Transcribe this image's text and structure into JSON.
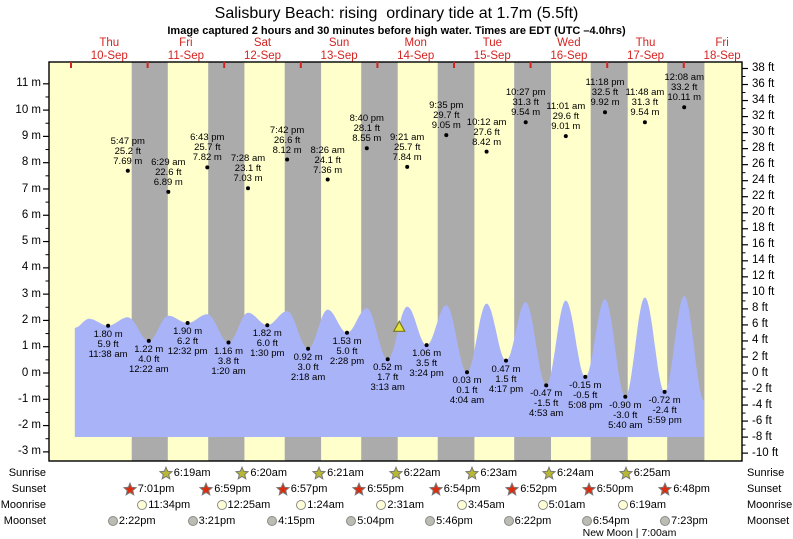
{
  "title": "Salisbury Beach: rising  ordinary tide at 1.7m (5.5ft)",
  "subtitle": "Image captured 2 hours and 30 minutes before high water. Times are EDT (UTC –4.0hrs)",
  "colors": {
    "day_band": "#ffffcc",
    "night_band": "#ababab",
    "tide_fill": "#a9b3f7",
    "day_label": "#d42421",
    "top_tick": "#d42421",
    "sunrise_star": "#b8b832",
    "sunset_star": "#dd2d0e",
    "moonrise_circle": "#ffffd6",
    "moonset_circle": "#bcbcb2",
    "marker_fill": "#e8e23c",
    "marker_stroke": "#7a7a20"
  },
  "chart_data": {
    "type": "area",
    "title": "Salisbury Beach: rising  ordinary tide at 1.7m (5.5ft)",
    "x_axis_days": [
      {
        "name": "Thu",
        "date": "10-Sep"
      },
      {
        "name": "Fri",
        "date": "11-Sep"
      },
      {
        "name": "Sat",
        "date": "12-Sep"
      },
      {
        "name": "Sun",
        "date": "13-Sep"
      },
      {
        "name": "Mon",
        "date": "14-Sep"
      },
      {
        "name": "Tue",
        "date": "15-Sep"
      },
      {
        "name": "Wed",
        "date": "16-Sep"
      },
      {
        "name": "Thu",
        "date": "17-Sep"
      },
      {
        "name": "Fri",
        "date": "18-Sep"
      }
    ],
    "y_axis_left": {
      "unit": "m",
      "max": 11,
      "min": -3,
      "step": 1,
      "ticks": [
        "11 m",
        "10 m",
        "9 m",
        "8 m",
        "7 m",
        "6 m",
        "5 m",
        "4 m",
        "3 m",
        "2 m",
        "1 m",
        "0 m",
        "-1 m",
        "-2 m",
        "-3 m"
      ]
    },
    "y_axis_right": {
      "unit": "ft",
      "max": 38,
      "min": -10,
      "step": 2,
      "ticks": [
        "38 ft",
        "36 ft",
        "34 ft",
        "32 ft",
        "30 ft",
        "28 ft",
        "26 ft",
        "24 ft",
        "22 ft",
        "20 ft",
        "18 ft",
        "16 ft",
        "14 ft",
        "12 ft",
        "10 ft",
        "8 ft",
        "6 ft",
        "4 ft",
        "2 ft",
        "0 ft",
        "-2 ft",
        "-4 ft",
        "-6 ft",
        "-8 ft",
        "-10 ft"
      ]
    },
    "high_tides": [
      {
        "day_index": 0,
        "clock": "17:47",
        "time": "5:47 pm",
        "ft": "25.2 ft",
        "m": "7.69 m",
        "height_m": 7.69
      },
      {
        "day_index": 1,
        "clock": "06:29",
        "time": "6:29 am",
        "ft": "22.6 ft",
        "m": "6.89 m",
        "height_m": 6.89
      },
      {
        "day_index": 1,
        "clock": "18:43",
        "time": "6:43 pm",
        "ft": "25.7 ft",
        "m": "7.82 m",
        "height_m": 7.82
      },
      {
        "day_index": 2,
        "clock": "07:28",
        "time": "7:28 am",
        "ft": "23.1 ft",
        "m": "7.03 m",
        "height_m": 7.03
      },
      {
        "day_index": 2,
        "clock": "19:42",
        "time": "7:42 pm",
        "ft": "26.6 ft",
        "m": "8.12 m",
        "height_m": 8.12
      },
      {
        "day_index": 3,
        "clock": "08:26",
        "time": "8:26 am",
        "ft": "24.1 ft",
        "m": "7.36 m",
        "height_m": 7.36
      },
      {
        "day_index": 3,
        "clock": "20:40",
        "time": "8:40 pm",
        "ft": "28.1 ft",
        "m": "8.55 m",
        "height_m": 8.55
      },
      {
        "day_index": 4,
        "clock": "09:21",
        "time": "9:21 am",
        "ft": "25.7 ft",
        "m": "7.84 m",
        "height_m": 7.84
      },
      {
        "day_index": 4,
        "clock": "21:35",
        "time": "9:35 pm",
        "ft": "29.7 ft",
        "m": "9.05 m",
        "height_m": 9.05
      },
      {
        "day_index": 5,
        "clock": "10:12",
        "time": "10:12 am",
        "ft": "27.6 ft",
        "m": "8.42 m",
        "height_m": 8.42
      },
      {
        "day_index": 5,
        "clock": "22:27",
        "time": "10:27 pm",
        "ft": "31.3 ft",
        "m": "9.54 m",
        "height_m": 9.54
      },
      {
        "day_index": 6,
        "clock": "11:01",
        "time": "11:01 am",
        "ft": "29.6 ft",
        "m": "9.01 m",
        "height_m": 9.01
      },
      {
        "day_index": 6,
        "clock": "23:18",
        "time": "11:18 pm",
        "ft": "32.5 ft",
        "m": "9.92 m",
        "height_m": 9.92
      },
      {
        "day_index": 7,
        "clock": "11:48",
        "time": "11:48 am",
        "ft": "31.3 ft",
        "m": "9.54 m",
        "height_m": 9.54
      },
      {
        "day_index": 8,
        "clock": "00:08",
        "time": "12:08 am",
        "ft": "33.2 ft",
        "m": "10.11 m",
        "height_m": 10.11
      }
    ],
    "low_tides": [
      {
        "day_index": 0,
        "clock": "11:38",
        "m": "1.80 m",
        "ft": "5.9 ft",
        "time": "11:38 am",
        "height_m": 1.8
      },
      {
        "day_index": 1,
        "clock": "00:22",
        "m": "1.22 m",
        "ft": "4.0 ft",
        "time": "12:22 am",
        "height_m": 1.22
      },
      {
        "day_index": 1,
        "clock": "12:32",
        "m": "1.90 m",
        "ft": "6.2 ft",
        "time": "12:32 pm",
        "height_m": 1.9
      },
      {
        "day_index": 2,
        "clock": "01:20",
        "m": "1.16 m",
        "ft": "3.8 ft",
        "time": "1:20 am",
        "height_m": 1.16
      },
      {
        "day_index": 2,
        "clock": "13:30",
        "m": "1.82 m",
        "ft": "6.0 ft",
        "time": "1:30 pm",
        "height_m": 1.82
      },
      {
        "day_index": 3,
        "clock": "02:18",
        "m": "0.92 m",
        "ft": "3.0 ft",
        "time": "2:18 am",
        "height_m": 0.92
      },
      {
        "day_index": 3,
        "clock": "14:28",
        "m": "1.53 m",
        "ft": "5.0 ft",
        "time": "2:28 pm",
        "height_m": 1.53
      },
      {
        "day_index": 4,
        "clock": "03:13",
        "m": "0.52 m",
        "ft": "1.7 ft",
        "time": "3:13 am",
        "height_m": 0.52
      },
      {
        "day_index": 4,
        "clock": "15:24",
        "m": "1.06 m",
        "ft": "3.5 ft",
        "time": "3:24 pm",
        "height_m": 1.06
      },
      {
        "day_index": 5,
        "clock": "04:04",
        "m": "0.03 m",
        "ft": "0.1 ft",
        "time": "4:04 am",
        "height_m": 0.03
      },
      {
        "day_index": 5,
        "clock": "16:17",
        "m": "0.47 m",
        "ft": "1.5 ft",
        "time": "4:17 pm",
        "height_m": 0.47
      },
      {
        "day_index": 6,
        "clock": "04:53",
        "m": "-0.47 m",
        "ft": "-1.5 ft",
        "time": "4:53 am",
        "height_m": -0.47
      },
      {
        "day_index": 6,
        "clock": "17:08",
        "m": "-0.15 m",
        "ft": "-0.5 ft",
        "time": "5:08 pm",
        "height_m": -0.15
      },
      {
        "day_index": 7,
        "clock": "05:40",
        "m": "-0.90 m",
        "ft": "-3.0 ft",
        "time": "5:40 am",
        "height_m": -0.9
      },
      {
        "day_index": 7,
        "clock": "17:59",
        "m": "-0.72 m",
        "ft": "-2.4 ft",
        "time": "5:59 pm",
        "height_m": -0.72
      }
    ],
    "current_marker": {
      "day_index": 4,
      "clock": "06:51",
      "level_m": 1.7,
      "shape": "triangle"
    }
  },
  "sun_moon": {
    "rows": [
      {
        "id": "sunrise",
        "label": "Sunrise",
        "icon": "sunrise-star",
        "entries": [
          {
            "day_index": 1,
            "clock": "06:19",
            "label": "6:19am"
          },
          {
            "day_index": 2,
            "clock": "06:20",
            "label": "6:20am"
          },
          {
            "day_index": 3,
            "clock": "06:21",
            "label": "6:21am"
          },
          {
            "day_index": 4,
            "clock": "06:22",
            "label": "6:22am"
          },
          {
            "day_index": 5,
            "clock": "06:23",
            "label": "6:23am"
          },
          {
            "day_index": 6,
            "clock": "06:24",
            "label": "6:24am"
          },
          {
            "day_index": 7,
            "clock": "06:25",
            "label": "6:25am"
          }
        ]
      },
      {
        "id": "sunset",
        "label": "Sunset",
        "icon": "sunset-star",
        "entries": [
          {
            "day_index": 0,
            "clock": "19:01",
            "label": "7:01pm"
          },
          {
            "day_index": 1,
            "clock": "18:59",
            "label": "6:59pm"
          },
          {
            "day_index": 2,
            "clock": "18:57",
            "label": "6:57pm"
          },
          {
            "day_index": 3,
            "clock": "18:55",
            "label": "6:55pm"
          },
          {
            "day_index": 4,
            "clock": "18:54",
            "label": "6:54pm"
          },
          {
            "day_index": 5,
            "clock": "18:52",
            "label": "6:52pm"
          },
          {
            "day_index": 6,
            "clock": "18:50",
            "label": "6:50pm"
          },
          {
            "day_index": 7,
            "clock": "18:48",
            "label": "6:48pm"
          }
        ]
      },
      {
        "id": "moonrise",
        "label": "Moonrise",
        "icon": "moonrise-circle",
        "entries": [
          {
            "day_index": 0,
            "clock": "23:34",
            "label": "11:34pm"
          },
          {
            "day_index": 2,
            "clock": "00:25",
            "label": "12:25am"
          },
          {
            "day_index": 3,
            "clock": "01:24",
            "label": "1:24am"
          },
          {
            "day_index": 4,
            "clock": "02:31",
            "label": "2:31am"
          },
          {
            "day_index": 5,
            "clock": "03:45",
            "label": "3:45am"
          },
          {
            "day_index": 6,
            "clock": "05:01",
            "label": "5:01am"
          },
          {
            "day_index": 7,
            "clock": "06:19",
            "label": "6:19am"
          }
        ]
      },
      {
        "id": "moonset",
        "label": "Moonset",
        "icon": "moonset-circle",
        "entries": [
          {
            "day_index": 0,
            "clock": "14:22",
            "label": "2:22pm"
          },
          {
            "day_index": 1,
            "clock": "15:21",
            "label": "3:21pm"
          },
          {
            "day_index": 2,
            "clock": "16:15",
            "label": "4:15pm"
          },
          {
            "day_index": 3,
            "clock": "17:04",
            "label": "5:04pm"
          },
          {
            "day_index": 4,
            "clock": "17:46",
            "label": "5:46pm"
          },
          {
            "day_index": 5,
            "clock": "18:22",
            "label": "6:22pm"
          },
          {
            "day_index": 6,
            "clock": "18:54",
            "label": "6:54pm"
          },
          {
            "day_index": 7,
            "clock": "19:23",
            "label": "7:23pm"
          }
        ]
      }
    ],
    "note": "New Moon | 7:00am",
    "note_day_index": 7,
    "note_clock": "07:00"
  }
}
